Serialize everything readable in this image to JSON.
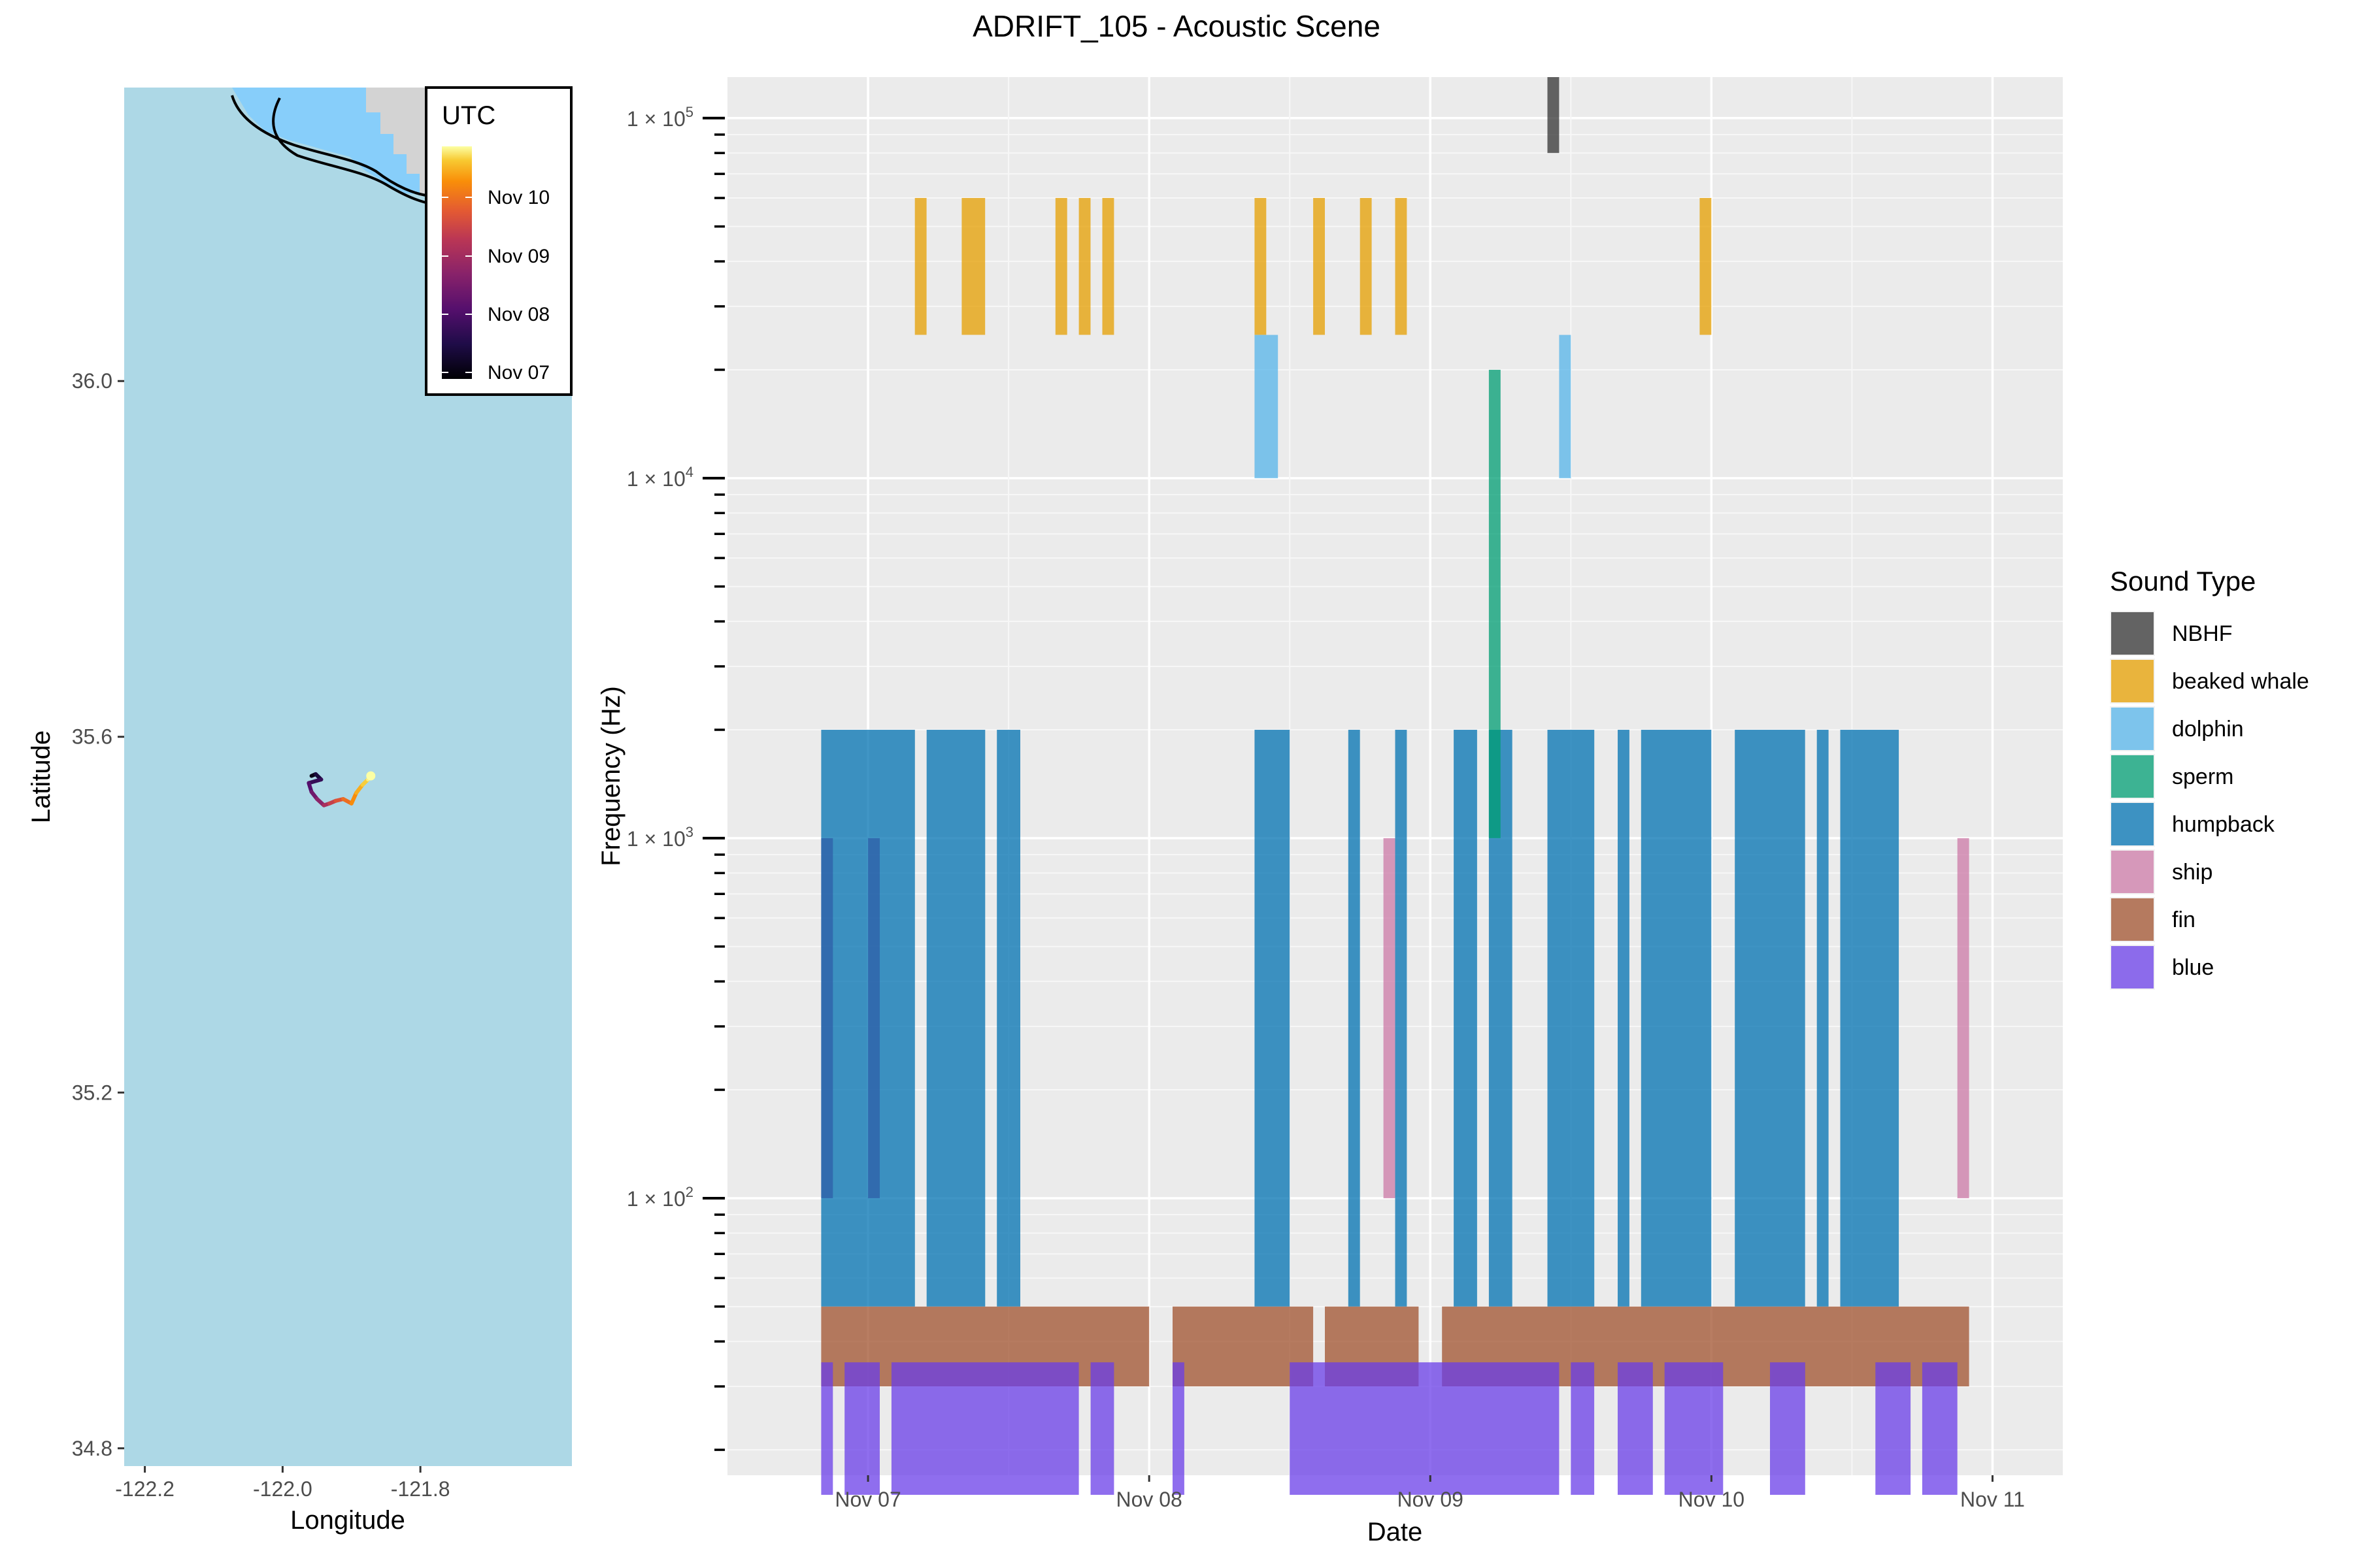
{
  "title": "ADRIFT_105 - Acoustic Scene",
  "chart_data": [
    {
      "type": "map",
      "xlabel": "Longitude",
      "ylabel": "Latitude",
      "xlim": [
        -122.23,
        -121.58
      ],
      "ylim": [
        34.78,
        36.33
      ],
      "xticks": [
        -122.2,
        -122.0,
        -121.8
      ],
      "xtick_labels": [
        "-122.2",
        "-122.0",
        "-121.8"
      ],
      "yticks": [
        34.8,
        35.2,
        35.6,
        36.0
      ],
      "ytick_labels": [
        "34.8",
        "35.2",
        "35.6",
        "36.0"
      ],
      "legend": {
        "title": "UTC",
        "placement": "top-right",
        "colormap": "inferno",
        "labels": [
          "Nov 10",
          "Nov 09",
          "Nov 08",
          "Nov 07"
        ]
      },
      "colors": {
        "ocean": "#add8e6",
        "coastal_water": "#87cefa",
        "land": "#d3d3d3",
        "coastline": "#000000"
      },
      "track": {
        "lon": [
          -121.958,
          -121.952,
          -121.944,
          -121.962,
          -121.958,
          -121.95,
          -121.94,
          -121.932,
          -121.923,
          -121.912,
          -121.9,
          -121.893,
          -121.884,
          -121.876,
          -121.872
        ],
        "lat": [
          35.556,
          35.558,
          35.552,
          35.548,
          35.538,
          35.53,
          35.523,
          35.525,
          35.528,
          35.53,
          35.525,
          35.537,
          35.546,
          35.552,
          35.556
        ],
        "time_frac": [
          0.0,
          0.07,
          0.14,
          0.21,
          0.28,
          0.35,
          0.42,
          0.5,
          0.57,
          0.64,
          0.71,
          0.78,
          0.85,
          0.92,
          1.0
        ]
      }
    },
    {
      "type": "timeline",
      "xlabel": "Date",
      "ylabel": "Frequency (Hz)",
      "y_scale": "log10",
      "ylim": [
        17,
        130000
      ],
      "xlim": [
        "2022-11-06 12:00",
        "2022-11-11 06:00"
      ],
      "xticks": [
        "2022-11-07",
        "2022-11-08",
        "2022-11-09",
        "2022-11-10",
        "2022-11-11"
      ],
      "xtick_labels": [
        "Nov 07",
        "Nov 08",
        "Nov 09",
        "Nov 10",
        "Nov 11"
      ],
      "yticks": [
        100,
        1000,
        10000,
        100000
      ],
      "ytick_labels": [
        {
          "base": "1 × 10",
          "exp": "2"
        },
        {
          "base": "1 × 10",
          "exp": "3"
        },
        {
          "base": "1 × 10",
          "exp": "4"
        },
        {
          "base": "1 × 10",
          "exp": "5"
        }
      ],
      "grid": true,
      "legend": {
        "title": "Sound Type",
        "placement": "right",
        "entries": [
          {
            "name": "NBHF",
            "color": "#333333"
          },
          {
            "name": "beaked whale",
            "color": "#E69F00"
          },
          {
            "name": "dolphin",
            "color": "#56B4E9"
          },
          {
            "name": "sperm",
            "color": "#009E73"
          },
          {
            "name": "humpback",
            "color": "#0072B2"
          },
          {
            "name": "ship",
            "color": "#CC79A7"
          },
          {
            "name": "fin",
            "color": "#A0522D"
          },
          {
            "name": "blue",
            "color": "#6A3DE8"
          }
        ]
      },
      "series": [
        {
          "name": "fin",
          "color": "#A0522D",
          "fmin": 30,
          "fmax": 50,
          "intervals": [
            [
              "2022-11-06 20:00",
              "2022-11-08 00:00"
            ],
            [
              "2022-11-08 02:00",
              "2022-11-08 14:00"
            ],
            [
              "2022-11-08 15:00",
              "2022-11-08 23:00"
            ],
            [
              "2022-11-09 01:00",
              "2022-11-10 22:00"
            ]
          ]
        },
        {
          "name": "blue",
          "color": "#6A3DE8",
          "fmin": 15,
          "fmax": 35,
          "intervals": [
            [
              "2022-11-06 20:00",
              "2022-11-06 21:00"
            ],
            [
              "2022-11-06 22:00",
              "2022-11-07 01:00"
            ],
            [
              "2022-11-07 02:00",
              "2022-11-07 18:00"
            ],
            [
              "2022-11-07 19:00",
              "2022-11-07 21:00"
            ],
            [
              "2022-11-08 02:00",
              "2022-11-08 03:00"
            ],
            [
              "2022-11-08 12:00",
              "2022-11-09 11:00"
            ],
            [
              "2022-11-09 12:00",
              "2022-11-09 14:00"
            ],
            [
              "2022-11-09 16:00",
              "2022-11-09 19:00"
            ],
            [
              "2022-11-09 20:00",
              "2022-11-10 01:00"
            ],
            [
              "2022-11-10 05:00",
              "2022-11-10 08:00"
            ],
            [
              "2022-11-10 14:00",
              "2022-11-10 17:00"
            ],
            [
              "2022-11-10 18:00",
              "2022-11-10 21:00"
            ]
          ]
        },
        {
          "name": "humpback",
          "color": "#0072B2",
          "fmin": 50,
          "fmax": 2000,
          "intervals": [
            [
              "2022-11-06 20:00",
              "2022-11-07 04:00"
            ],
            [
              "2022-11-07 05:00",
              "2022-11-07 10:00"
            ],
            [
              "2022-11-07 11:00",
              "2022-11-07 13:00"
            ],
            [
              "2022-11-08 09:00",
              "2022-11-08 12:00"
            ],
            [
              "2022-11-08 17:00",
              "2022-11-08 18:00"
            ],
            [
              "2022-11-08 21:00",
              "2022-11-08 22:00"
            ],
            [
              "2022-11-09 02:00",
              "2022-11-09 04:00"
            ],
            [
              "2022-11-09 05:00",
              "2022-11-09 07:00"
            ],
            [
              "2022-11-09 10:00",
              "2022-11-09 14:00"
            ],
            [
              "2022-11-09 16:00",
              "2022-11-09 17:00"
            ],
            [
              "2022-11-09 18:00",
              "2022-11-10 00:00"
            ],
            [
              "2022-11-10 02:00",
              "2022-11-10 08:00"
            ],
            [
              "2022-11-10 09:00",
              "2022-11-10 10:00"
            ],
            [
              "2022-11-10 11:00",
              "2022-11-10 16:00"
            ]
          ]
        },
        {
          "name": "humpback",
          "color": "#2F5FA8",
          "fmin": 100,
          "fmax": 1000,
          "intervals": [
            [
              "2022-11-06 20:00",
              "2022-11-06 21:00"
            ],
            [
              "2022-11-07 00:00",
              "2022-11-07 01:00"
            ]
          ]
        },
        {
          "name": "ship",
          "color": "#CC79A7",
          "fmin": 100,
          "fmax": 1000,
          "intervals": [
            [
              "2022-11-08 20:00",
              "2022-11-08 21:00"
            ],
            [
              "2022-11-10 21:00",
              "2022-11-10 22:00"
            ]
          ]
        },
        {
          "name": "sperm",
          "color": "#009E73",
          "fmin": 1000,
          "fmax": 20000,
          "intervals": [
            [
              "2022-11-09 05:00",
              "2022-11-09 06:00"
            ]
          ]
        },
        {
          "name": "dolphin",
          "color": "#56B4E9",
          "fmin": 10000,
          "fmax": 25000,
          "intervals": [
            [
              "2022-11-08 09:00",
              "2022-11-08 11:00"
            ],
            [
              "2022-11-09 11:00",
              "2022-11-09 12:00"
            ]
          ]
        },
        {
          "name": "beaked whale",
          "color": "#E69F00",
          "fmin": 25000,
          "fmax": 60000,
          "intervals": [
            [
              "2022-11-07 04:00",
              "2022-11-07 05:00"
            ],
            [
              "2022-11-07 08:00",
              "2022-11-07 10:00"
            ],
            [
              "2022-11-07 16:00",
              "2022-11-07 17:00"
            ],
            [
              "2022-11-07 18:00",
              "2022-11-07 19:00"
            ],
            [
              "2022-11-07 20:00",
              "2022-11-07 21:00"
            ],
            [
              "2022-11-08 09:00",
              "2022-11-08 10:00"
            ],
            [
              "2022-11-08 14:00",
              "2022-11-08 15:00"
            ],
            [
              "2022-11-08 18:00",
              "2022-11-08 19:00"
            ],
            [
              "2022-11-08 21:00",
              "2022-11-08 22:00"
            ],
            [
              "2022-11-09 23:00",
              "2022-11-10 00:00"
            ]
          ]
        },
        {
          "name": "NBHF",
          "color": "#333333",
          "fmin": 80000,
          "fmax": 130000,
          "intervals": [
            [
              "2022-11-09 10:00",
              "2022-11-09 11:00"
            ]
          ]
        }
      ]
    }
  ]
}
